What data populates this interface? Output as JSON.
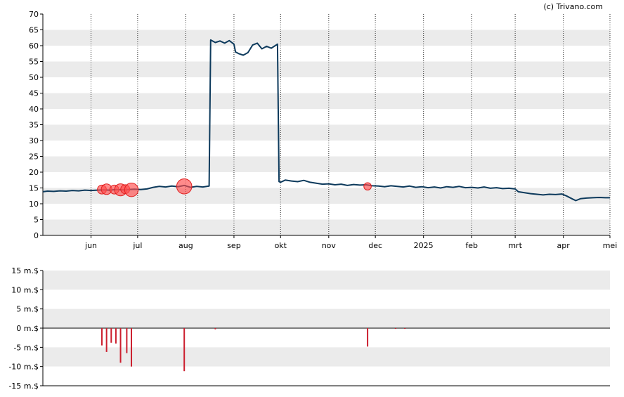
{
  "watermark": "(c) Trivano.com",
  "chart_data": [
    {
      "type": "line",
      "name": "price",
      "ylim": [
        0,
        70
      ],
      "y_ticks": [
        0,
        5,
        10,
        15,
        20,
        25,
        30,
        35,
        40,
        45,
        50,
        55,
        60,
        65,
        70
      ],
      "x_ticks": [
        {
          "label": "jun",
          "x": "2024-06-01"
        },
        {
          "label": "jul",
          "x": "2024-07-01"
        },
        {
          "label": "aug",
          "x": "2024-08-01"
        },
        {
          "label": "sep",
          "x": "2024-09-01"
        },
        {
          "label": "okt",
          "x": "2024-10-01"
        },
        {
          "label": "nov",
          "x": "2024-11-01"
        },
        {
          "label": "dec",
          "x": "2024-12-01"
        },
        {
          "label": "2025",
          "x": "2025-01-01"
        },
        {
          "label": "feb",
          "x": "2025-02-01"
        },
        {
          "label": "mrt",
          "x": "2025-03-01"
        },
        {
          "label": "apr",
          "x": "2025-04-01"
        },
        {
          "label": "mei",
          "x": "2025-05-01"
        }
      ],
      "x_range": [
        "2024-05-01",
        "2025-05-01"
      ],
      "line_color": "#0d3a5c",
      "points": [
        [
          "2024-05-01",
          13.8
        ],
        [
          "2024-05-04",
          14.0
        ],
        [
          "2024-05-08",
          13.9
        ],
        [
          "2024-05-12",
          14.1
        ],
        [
          "2024-05-16",
          14.0
        ],
        [
          "2024-05-20",
          14.2
        ],
        [
          "2024-05-24",
          14.1
        ],
        [
          "2024-05-28",
          14.3
        ],
        [
          "2024-06-01",
          14.2
        ],
        [
          "2024-06-05",
          14.3
        ],
        [
          "2024-06-09",
          14.4
        ],
        [
          "2024-06-13",
          14.3
        ],
        [
          "2024-06-17",
          14.5
        ],
        [
          "2024-06-21",
          14.4
        ],
        [
          "2024-06-25",
          14.5
        ],
        [
          "2024-06-29",
          14.6
        ],
        [
          "2024-07-03",
          14.5
        ],
        [
          "2024-07-07",
          14.7
        ],
        [
          "2024-07-11",
          15.2
        ],
        [
          "2024-07-15",
          15.5
        ],
        [
          "2024-07-19",
          15.3
        ],
        [
          "2024-07-23",
          15.6
        ],
        [
          "2024-07-27",
          15.4
        ],
        [
          "2024-07-31",
          15.8
        ],
        [
          "2024-08-04",
          15.2
        ],
        [
          "2024-08-08",
          15.5
        ],
        [
          "2024-08-12",
          15.3
        ],
        [
          "2024-08-16",
          15.6
        ],
        [
          "2024-08-17",
          61.8
        ],
        [
          "2024-08-20",
          61.0
        ],
        [
          "2024-08-23",
          61.5
        ],
        [
          "2024-08-26",
          60.8
        ],
        [
          "2024-08-29",
          61.6
        ],
        [
          "2024-09-01",
          60.5
        ],
        [
          "2024-09-02",
          58.0
        ],
        [
          "2024-09-04",
          57.5
        ],
        [
          "2024-09-07",
          57.0
        ],
        [
          "2024-09-10",
          57.8
        ],
        [
          "2024-09-13",
          60.2
        ],
        [
          "2024-09-16",
          60.8
        ],
        [
          "2024-09-19",
          59.0
        ],
        [
          "2024-09-22",
          59.8
        ],
        [
          "2024-09-25",
          59.2
        ],
        [
          "2024-09-29",
          60.5
        ],
        [
          "2024-09-30",
          17.0
        ],
        [
          "2024-10-01",
          16.8
        ],
        [
          "2024-10-04",
          17.5
        ],
        [
          "2024-10-08",
          17.2
        ],
        [
          "2024-10-12",
          17.0
        ],
        [
          "2024-10-16",
          17.4
        ],
        [
          "2024-10-20",
          16.8
        ],
        [
          "2024-10-24",
          16.5
        ],
        [
          "2024-10-28",
          16.2
        ],
        [
          "2024-11-01",
          16.3
        ],
        [
          "2024-11-05",
          16.0
        ],
        [
          "2024-11-09",
          16.2
        ],
        [
          "2024-11-13",
          15.8
        ],
        [
          "2024-11-17",
          16.1
        ],
        [
          "2024-11-21",
          15.9
        ],
        [
          "2024-11-25",
          16.0
        ],
        [
          "2024-11-29",
          15.7
        ],
        [
          "2024-12-03",
          15.6
        ],
        [
          "2024-12-07",
          15.4
        ],
        [
          "2024-12-11",
          15.7
        ],
        [
          "2024-12-15",
          15.5
        ],
        [
          "2024-12-19",
          15.3
        ],
        [
          "2024-12-23",
          15.6
        ],
        [
          "2024-12-27",
          15.2
        ],
        [
          "2024-12-31",
          15.4
        ],
        [
          "2025-01-04",
          15.1
        ],
        [
          "2025-01-08",
          15.3
        ],
        [
          "2025-01-12",
          15.0
        ],
        [
          "2025-01-16",
          15.4
        ],
        [
          "2025-01-20",
          15.2
        ],
        [
          "2025-01-24",
          15.5
        ],
        [
          "2025-01-28",
          15.1
        ],
        [
          "2025-02-01",
          15.2
        ],
        [
          "2025-02-05",
          15.0
        ],
        [
          "2025-02-09",
          15.3
        ],
        [
          "2025-02-13",
          14.9
        ],
        [
          "2025-02-17",
          15.1
        ],
        [
          "2025-02-21",
          14.8
        ],
        [
          "2025-02-25",
          14.9
        ],
        [
          "2025-03-01",
          14.7
        ],
        [
          "2025-03-03",
          13.8
        ],
        [
          "2025-03-07",
          13.5
        ],
        [
          "2025-03-11",
          13.2
        ],
        [
          "2025-03-15",
          13.0
        ],
        [
          "2025-03-19",
          12.8
        ],
        [
          "2025-03-23",
          13.0
        ],
        [
          "2025-03-27",
          12.9
        ],
        [
          "2025-03-31",
          13.1
        ],
        [
          "2025-04-03",
          12.5
        ],
        [
          "2025-04-07",
          11.5
        ],
        [
          "2025-04-09",
          11.0
        ],
        [
          "2025-04-12",
          11.6
        ],
        [
          "2025-04-16",
          11.8
        ],
        [
          "2025-04-20",
          11.9
        ],
        [
          "2025-04-24",
          12.0
        ],
        [
          "2025-04-28",
          11.9
        ],
        [
          "2025-05-01",
          11.9
        ]
      ],
      "markers": [
        {
          "x": "2024-06-08",
          "y": 14.5,
          "size": 2
        },
        {
          "x": "2024-06-11",
          "y": 14.6,
          "size": 2.5
        },
        {
          "x": "2024-06-16",
          "y": 14.5,
          "size": 2
        },
        {
          "x": "2024-06-20",
          "y": 14.4,
          "size": 3
        },
        {
          "x": "2024-06-23",
          "y": 14.6,
          "size": 2
        },
        {
          "x": "2024-06-27",
          "y": 14.4,
          "size": 3.5
        },
        {
          "x": "2024-07-31",
          "y": 15.5,
          "size": 4
        },
        {
          "x": "2024-11-26",
          "y": 15.5,
          "size": 1.5
        }
      ],
      "marker_color": "#ff4d4d"
    },
    {
      "type": "bar",
      "name": "volume",
      "ylim": [
        -15,
        15
      ],
      "y_ticks": [
        {
          "label": "15 m.$",
          "y": 15
        },
        {
          "label": "10 m.$",
          "y": 10
        },
        {
          "label": "5 m.$",
          "y": 5
        },
        {
          "label": "0 m.$",
          "y": 0
        },
        {
          "label": "-5 m.$",
          "y": -5
        },
        {
          "label": "-10 m.$",
          "y": -10
        },
        {
          "label": "-15 m.$",
          "y": -15
        }
      ],
      "bar_color": "#cc1f2e",
      "bars": [
        {
          "x": "2024-06-08",
          "value": -4.5
        },
        {
          "x": "2024-06-11",
          "value": -6.2
        },
        {
          "x": "2024-06-14",
          "value": -3.8
        },
        {
          "x": "2024-06-17",
          "value": -4.0
        },
        {
          "x": "2024-06-20",
          "value": -9.0
        },
        {
          "x": "2024-06-24",
          "value": -6.5
        },
        {
          "x": "2024-06-27",
          "value": -10.0
        },
        {
          "x": "2024-07-31",
          "value": -11.2
        },
        {
          "x": "2024-08-20",
          "value": -0.3
        },
        {
          "x": "2024-11-26",
          "value": -4.8
        },
        {
          "x": "2024-12-14",
          "value": -0.2
        },
        {
          "x": "2024-12-20",
          "value": -0.2
        }
      ]
    }
  ]
}
